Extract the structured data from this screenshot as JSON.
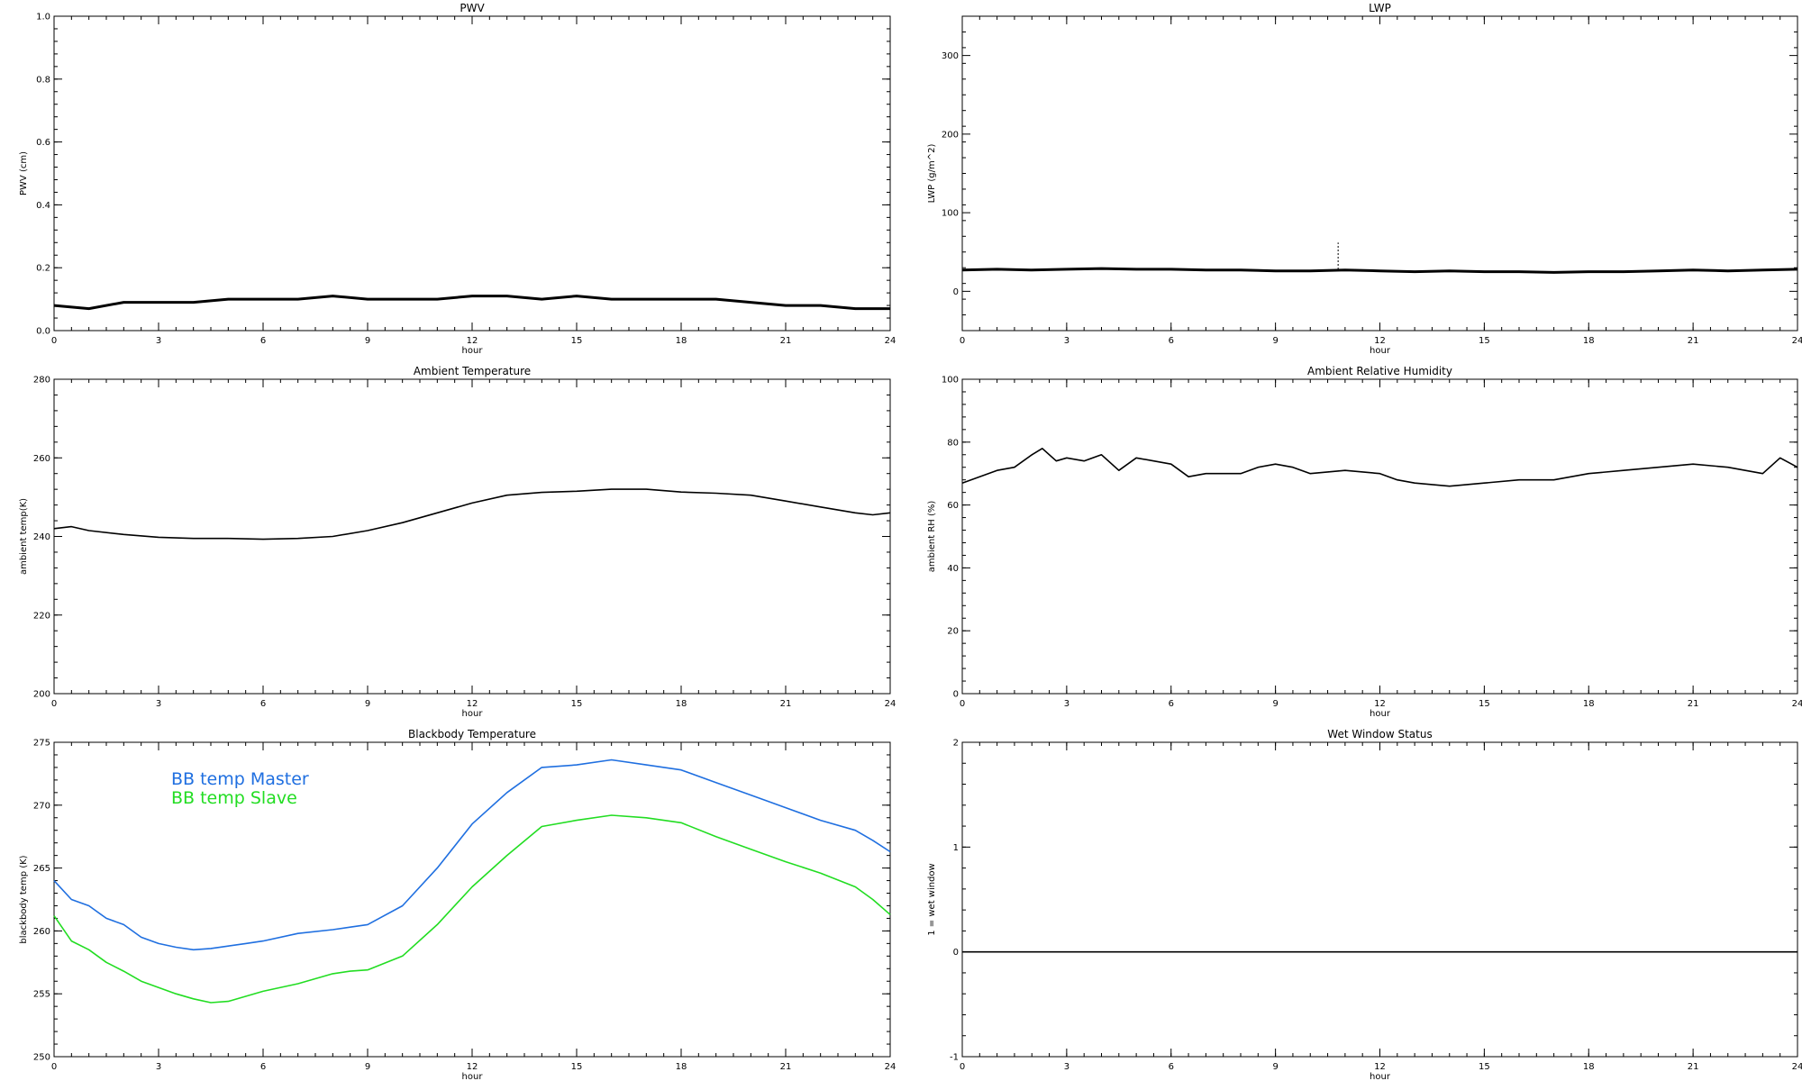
{
  "chart_data": [
    {
      "id": "pwv",
      "type": "line",
      "title": "PWV",
      "xlabel": "hour",
      "ylabel": "PWV (cm)",
      "xlim": [
        0,
        24
      ],
      "ylim": [
        0,
        1.0
      ],
      "xticks": [
        0,
        3,
        6,
        9,
        12,
        15,
        18,
        21,
        24
      ],
      "yticks": [
        0,
        0.2,
        0.4,
        0.6,
        0.8,
        1.0
      ],
      "ytick_labels": [
        "0.0",
        "0.2",
        "0.4",
        "0.6",
        "0.8",
        "1.0"
      ],
      "series": [
        {
          "color": "#000000",
          "x": [
            0,
            1,
            2,
            3,
            4,
            5,
            6,
            7,
            8,
            9,
            10,
            11,
            12,
            13,
            14,
            15,
            16,
            17,
            18,
            19,
            20,
            21,
            22,
            23,
            24
          ],
          "y": [
            0.08,
            0.07,
            0.09,
            0.09,
            0.09,
            0.1,
            0.1,
            0.1,
            0.11,
            0.1,
            0.1,
            0.1,
            0.11,
            0.11,
            0.1,
            0.11,
            0.1,
            0.1,
            0.1,
            0.1,
            0.09,
            0.08,
            0.08,
            0.07,
            0.07
          ]
        }
      ]
    },
    {
      "id": "lwp",
      "type": "line",
      "title": "LWP",
      "xlabel": "hour",
      "ylabel": "LWP (g/m^2)",
      "xlim": [
        0,
        24
      ],
      "ylim": [
        -50,
        350
      ],
      "xticks": [
        0,
        3,
        6,
        9,
        12,
        15,
        18,
        21,
        24
      ],
      "yticks": [
        0,
        100,
        200,
        300
      ],
      "series": [
        {
          "color": "#000000",
          "x": [
            0,
            1,
            2,
            3,
            4,
            5,
            6,
            7,
            8,
            9,
            10,
            11,
            12,
            13,
            14,
            15,
            16,
            17,
            18,
            19,
            20,
            21,
            22,
            23,
            24
          ],
          "y": [
            27,
            28,
            27,
            28,
            29,
            28,
            28,
            27,
            27,
            26,
            26,
            27,
            26,
            25,
            26,
            25,
            25,
            24,
            25,
            25,
            26,
            27,
            26,
            27,
            28
          ]
        }
      ],
      "annotations": [
        {
          "x": 10.8,
          "y0": 28,
          "y1": 62
        }
      ]
    },
    {
      "id": "ambient_temperature",
      "type": "line",
      "title": "Ambient Temperature",
      "xlabel": "hour",
      "ylabel": "ambient temp(K)",
      "xlim": [
        0,
        24
      ],
      "ylim": [
        200,
        280
      ],
      "xticks": [
        0,
        3,
        6,
        9,
        12,
        15,
        18,
        21,
        24
      ],
      "yticks": [
        200,
        220,
        240,
        260,
        280
      ],
      "series": [
        {
          "color": "#000000",
          "x": [
            0,
            0.5,
            1,
            2,
            3,
            4,
            5,
            6,
            7,
            8,
            9,
            10,
            11,
            12,
            13,
            14,
            15,
            16,
            17,
            18,
            19,
            20,
            21,
            22,
            23,
            23.5,
            24
          ],
          "y": [
            242,
            242.5,
            241.5,
            240.5,
            239.8,
            239.5,
            239.5,
            239.3,
            239.5,
            240,
            241.5,
            243.5,
            246,
            248.5,
            250.5,
            251.2,
            251.5,
            252,
            252,
            251.3,
            251,
            250.5,
            249,
            247.5,
            246,
            245.5,
            246
          ]
        }
      ]
    },
    {
      "id": "ambient_rh",
      "type": "line",
      "title": "Ambient Relative Humidity",
      "xlabel": "hour",
      "ylabel": "ambient RH (%)",
      "xlim": [
        0,
        24
      ],
      "ylim": [
        0,
        100
      ],
      "xticks": [
        0,
        3,
        6,
        9,
        12,
        15,
        18,
        21,
        24
      ],
      "yticks": [
        0,
        20,
        40,
        60,
        80,
        100
      ],
      "series": [
        {
          "color": "#000000",
          "x": [
            0,
            0.5,
            1,
            1.5,
            2,
            2.3,
            2.7,
            3,
            3.5,
            4,
            4.5,
            5,
            5.5,
            6,
            6.5,
            7,
            8,
            8.5,
            9,
            9.5,
            10,
            11,
            12,
            12.5,
            13,
            14,
            15,
            16,
            17,
            18,
            19,
            20,
            21,
            22,
            23,
            23.5,
            24
          ],
          "y": [
            67,
            69,
            71,
            72,
            76,
            78,
            74,
            75,
            74,
            76,
            71,
            75,
            74,
            73,
            69,
            70,
            70,
            72,
            73,
            72,
            70,
            71,
            70,
            68,
            67,
            66,
            67,
            68,
            68,
            70,
            71,
            72,
            73,
            72,
            70,
            75,
            72
          ]
        }
      ]
    },
    {
      "id": "blackbody_temperature",
      "type": "line",
      "title": "Blackbody Temperature",
      "xlabel": "hour",
      "ylabel": "blackbody temp (K)",
      "xlim": [
        0,
        24
      ],
      "ylim": [
        250,
        275
      ],
      "xticks": [
        0,
        3,
        6,
        9,
        12,
        15,
        18,
        21,
        24
      ],
      "yticks": [
        250,
        255,
        260,
        265,
        270,
        275
      ],
      "legend": [
        {
          "label": "BB temp Master",
          "color": "#1f6fe0"
        },
        {
          "label": "BB temp Slave",
          "color": "#22dd22"
        }
      ],
      "series": [
        {
          "name": "BB temp Master",
          "color": "#1f6fe0",
          "x": [
            0,
            0.5,
            1,
            1.5,
            2,
            2.5,
            3,
            3.5,
            4,
            4.5,
            5,
            5.5,
            6,
            7,
            8,
            8.5,
            9,
            10,
            11,
            12,
            13,
            14,
            15,
            16,
            17,
            18,
            19,
            20,
            21,
            22,
            23,
            23.5,
            24
          ],
          "y": [
            264,
            262.5,
            262,
            261,
            260.5,
            259.5,
            259,
            258.7,
            258.5,
            258.6,
            258.8,
            259,
            259.2,
            259.8,
            260.1,
            260.3,
            260.5,
            262,
            265,
            268.5,
            271,
            273,
            273.2,
            273.6,
            273.2,
            272.8,
            271.8,
            270.8,
            269.8,
            268.8,
            268,
            267.2,
            266.3
          ]
        },
        {
          "name": "BB temp Slave",
          "color": "#22dd22",
          "x": [
            0,
            0.5,
            1,
            1.5,
            2,
            2.5,
            3,
            3.5,
            4,
            4.5,
            5,
            5.5,
            6,
            7,
            8,
            8.5,
            9,
            10,
            11,
            12,
            13,
            14,
            15,
            16,
            17,
            18,
            19,
            20,
            21,
            22,
            23,
            23.5,
            24
          ],
          "y": [
            261.2,
            259.2,
            258.5,
            257.5,
            256.8,
            256,
            255.5,
            255,
            254.6,
            254.3,
            254.4,
            254.8,
            255.2,
            255.8,
            256.6,
            256.8,
            256.9,
            258,
            260.5,
            263.5,
            266,
            268.3,
            268.8,
            269.2,
            269,
            268.6,
            267.5,
            266.5,
            265.5,
            264.6,
            263.5,
            262.5,
            261.3
          ]
        }
      ]
    },
    {
      "id": "wet_window_status",
      "type": "line",
      "title": "Wet Window Status",
      "xlabel": "hour",
      "ylabel": "1 = wet window",
      "xlim": [
        0,
        24
      ],
      "ylim": [
        -1,
        2
      ],
      "xticks": [
        0,
        3,
        6,
        9,
        12,
        15,
        18,
        21,
        24
      ],
      "yticks": [
        -1,
        0,
        1,
        2
      ],
      "series": [
        {
          "color": "#000000",
          "x": [
            0,
            24
          ],
          "y": [
            0,
            0
          ]
        }
      ]
    }
  ]
}
